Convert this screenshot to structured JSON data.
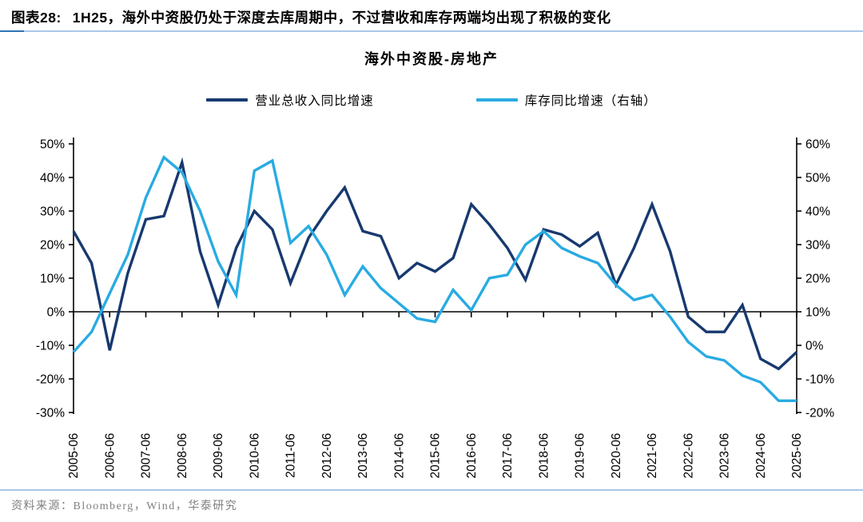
{
  "figure": {
    "label": "图表28:",
    "title": "1H25，海外中资股仍处于深度去库周期中，不过营收和库存两端均出现了积极的变化",
    "source": "资料来源：Bloomberg，Wind，华泰研究"
  },
  "colors": {
    "revenue_line": "#17396f",
    "inventory_line": "#29abe2",
    "axis": "#000000",
    "header_rule": "#aac7e8",
    "header_rule_accent": "#2e74b5",
    "source_text": "#808080"
  },
  "chart_data": {
    "type": "line",
    "title": "海外中资股-房地产",
    "legend_position": "top",
    "grid": false,
    "x": [
      "2005-06",
      "2005-12",
      "2006-06",
      "2006-12",
      "2007-06",
      "2007-12",
      "2008-06",
      "2008-12",
      "2009-06",
      "2009-12",
      "2010-06",
      "2010-12",
      "2011-06",
      "2011-12",
      "2012-06",
      "2012-12",
      "2013-06",
      "2013-12",
      "2014-06",
      "2014-12",
      "2015-06",
      "2015-12",
      "2016-06",
      "2016-12",
      "2017-06",
      "2017-12",
      "2018-06",
      "2018-12",
      "2019-06",
      "2019-12",
      "2020-06",
      "2020-12",
      "2021-06",
      "2021-12",
      "2022-06",
      "2022-12",
      "2023-06",
      "2023-12",
      "2024-06",
      "2024-12",
      "2025-06"
    ],
    "x_tick_labels": [
      "2005-06",
      "2006-06",
      "2007-06",
      "2008-06",
      "2009-06",
      "2010-06",
      "2011-06",
      "2012-06",
      "2013-06",
      "2014-06",
      "2015-06",
      "2016-06",
      "2017-06",
      "2018-06",
      "2019-06",
      "2020-06",
      "2021-06",
      "2022-06",
      "2023-06",
      "2024-06",
      "2025-06"
    ],
    "series": [
      {
        "name": "营业总收入同比增速",
        "axis": "left",
        "color": "#17396f",
        "values": [
          24,
          14.5,
          -11.5,
          11.5,
          27.5,
          28.5,
          44.5,
          18,
          2,
          19,
          30,
          24.5,
          8.5,
          22,
          30,
          37,
          24,
          22.5,
          10,
          14.5,
          12,
          16,
          32,
          26,
          19,
          9.5,
          24.5,
          23,
          19.5,
          23.5,
          8,
          19,
          32,
          18,
          -1.5,
          -6,
          -6,
          2,
          -14,
          -17,
          -12
        ]
      },
      {
        "name": "库存同比增速（右轴）",
        "axis": "right",
        "color": "#29abe2",
        "values": [
          -2,
          4,
          15.5,
          27,
          44,
          56,
          51.5,
          40,
          25,
          15,
          52,
          55,
          30.5,
          35.5,
          27,
          15,
          23.5,
          17,
          12.5,
          8,
          7,
          16.5,
          10.5,
          20,
          21,
          30,
          34,
          29,
          26.5,
          24.5,
          18,
          13.5,
          15,
          8.5,
          1,
          -3.3,
          -4.5,
          -9,
          -11,
          -16.5,
          -16.5
        ]
      }
    ],
    "left_axis": {
      "min": -30,
      "max": 50,
      "step": 10,
      "labels": [
        "50%",
        "40%",
        "30%",
        "20%",
        "10%",
        "0%",
        "-10%",
        "-20%",
        "-30%"
      ]
    },
    "right_axis": {
      "min": -20,
      "max": 60,
      "step": 10,
      "labels": [
        "60%",
        "50%",
        "40%",
        "30%",
        "20%",
        "10%",
        "0%",
        "-10%",
        "-20%"
      ]
    }
  }
}
